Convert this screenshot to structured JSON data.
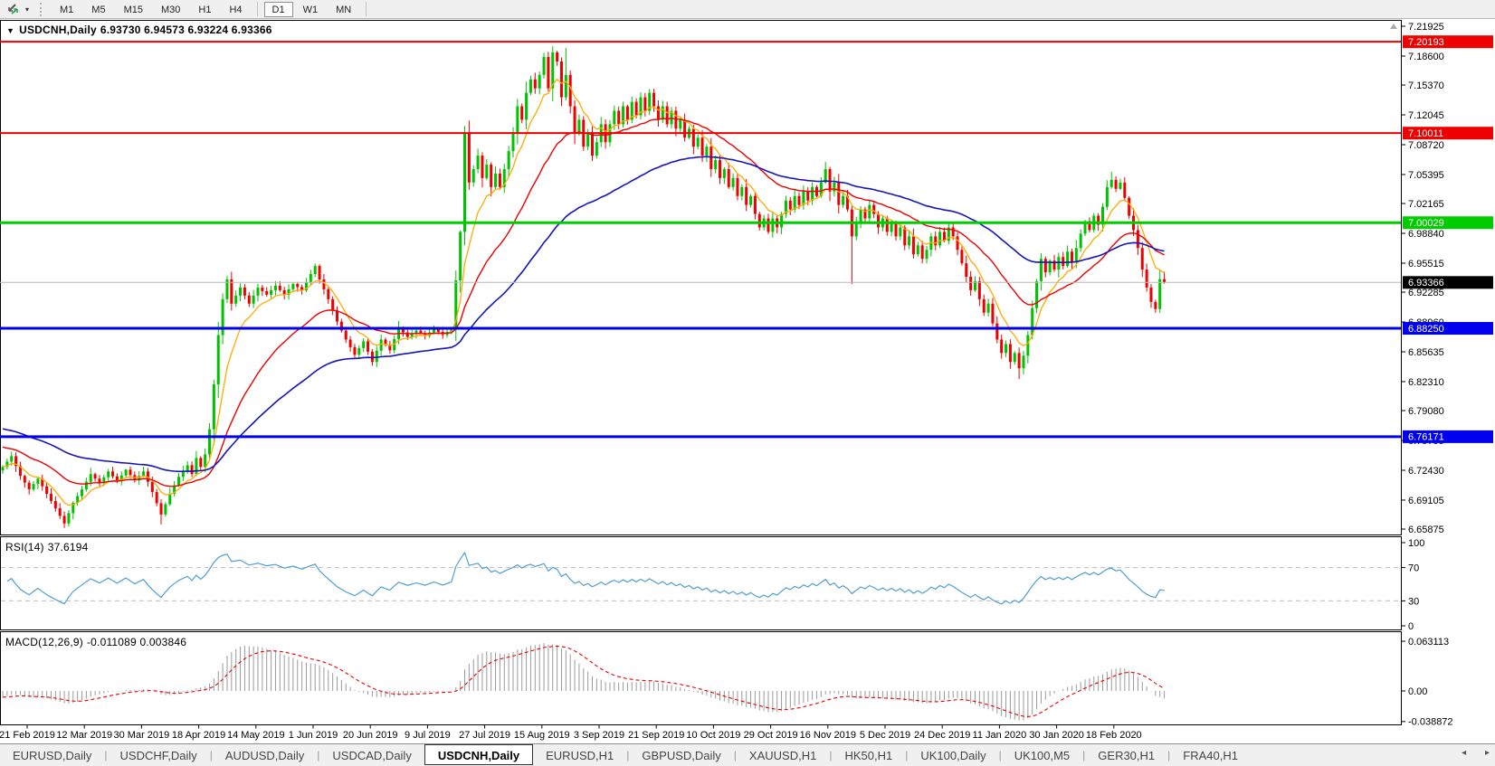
{
  "toolbar": {
    "chart_icon": "chart-shift-icon",
    "dropdown_icon": "▾",
    "timeframe_groups": [
      [
        "M1",
        "M5",
        "M15",
        "M30",
        "H1",
        "H4"
      ],
      [
        "D1",
        "W1",
        "MN"
      ]
    ],
    "active_timeframe": "D1"
  },
  "chart_header": {
    "collapse_icon": "▼",
    "symbol_label": "USDCNH,Daily",
    "ohlc": "6.93730 6.94573 6.93224 6.93366"
  },
  "indicators": {
    "rsi": {
      "label": "RSI(14)",
      "value": "37.6194",
      "levels": [
        100,
        70,
        30,
        0
      ],
      "line_color": "#4f9ed6"
    },
    "macd": {
      "label": "MACD(12,26,9)",
      "values": "-0.011089 0.003846",
      "axis_labels": [
        "0.063113",
        "0.00",
        "-0.038872"
      ],
      "histogram_color": "#9a9a9a",
      "signal_color": "#ee0000"
    }
  },
  "price_axis": {
    "ticks": [
      "7.21925",
      "7.18600",
      "7.15370",
      "7.12045",
      "7.08720",
      "7.05395",
      "7.02165",
      "6.98840",
      "6.95515",
      "6.92285",
      "6.88960",
      "6.85635",
      "6.82310",
      "6.79080",
      "6.75755",
      "6.72430",
      "6.69105",
      "6.65875"
    ],
    "badges": [
      {
        "value": "7.20193",
        "bg": "#ee0000",
        "fg": "#ffffff"
      },
      {
        "value": "7.10011",
        "bg": "#ee0000",
        "fg": "#ffffff"
      },
      {
        "value": "7.00029",
        "bg": "#00cc00",
        "fg": "#ffffff"
      },
      {
        "value": "6.93366",
        "bg": "#000000",
        "fg": "#ffffff"
      },
      {
        "value": "6.88250",
        "bg": "#0000ee",
        "fg": "#ffffff"
      },
      {
        "value": "6.76171",
        "bg": "#0000ee",
        "fg": "#ffffff"
      }
    ]
  },
  "chart_data": {
    "type": "candlestick",
    "symbol": "USDCNH",
    "timeframe": "Daily",
    "ohlc_current": {
      "open": 6.9373,
      "high": 6.94573,
      "low": 6.93224,
      "close": 6.93366
    },
    "y_range": [
      6.65875,
      7.21925
    ],
    "grid": false,
    "x_labels": [
      "21 Feb 2019",
      "12 Mar 2019",
      "30 Mar 2019",
      "18 Apr 2019",
      "14 May 2019",
      "1 Jun 2019",
      "20 Jun 2019",
      "9 Jul 2019",
      "27 Jul 2019",
      "15 Aug 2019",
      "3 Sep 2019",
      "21 Sep 2019",
      "10 Oct 2019",
      "29 Oct 2019",
      "16 Nov 2019",
      "5 Dec 2019",
      "24 Dec 2019",
      "11 Jan 2020",
      "30 Jan 2020",
      "18 Feb 2020"
    ],
    "up_color": "#00c200",
    "down_color": "#ee0000",
    "close_keyframes": [
      [
        0,
        6.728
      ],
      [
        2,
        6.74
      ],
      [
        4,
        6.718
      ],
      [
        6,
        6.703
      ],
      [
        8,
        6.715
      ],
      [
        10,
        6.698
      ],
      [
        12,
        6.682
      ],
      [
        14,
        6.665
      ],
      [
        16,
        6.688
      ],
      [
        18,
        6.703
      ],
      [
        20,
        6.72
      ],
      [
        22,
        6.71
      ],
      [
        24,
        6.723
      ],
      [
        26,
        6.712
      ],
      [
        28,
        6.725
      ],
      [
        30,
        6.713
      ],
      [
        32,
        6.723
      ],
      [
        34,
        6.7
      ],
      [
        36,
        6.675
      ],
      [
        38,
        6.698
      ],
      [
        40,
        6.717
      ],
      [
        42,
        6.73
      ],
      [
        43,
        6.72
      ],
      [
        44,
        6.738
      ],
      [
        45,
        6.728
      ],
      [
        46,
        6.742
      ],
      [
        47,
        6.77
      ],
      [
        48,
        6.82
      ],
      [
        49,
        6.875
      ],
      [
        50,
        6.915
      ],
      [
        51,
        6.937
      ],
      [
        52,
        6.91
      ],
      [
        54,
        6.928
      ],
      [
        56,
        6.91
      ],
      [
        58,
        6.928
      ],
      [
        60,
        6.92
      ],
      [
        62,
        6.93
      ],
      [
        64,
        6.92
      ],
      [
        66,
        6.932
      ],
      [
        68,
        6.925
      ],
      [
        70,
        6.943
      ],
      [
        71,
        6.952
      ],
      [
        72,
        6.937
      ],
      [
        74,
        6.915
      ],
      [
        76,
        6.89
      ],
      [
        78,
        6.87
      ],
      [
        80,
        6.853
      ],
      [
        82,
        6.868
      ],
      [
        84,
        6.845
      ],
      [
        86,
        6.87
      ],
      [
        88,
        6.858
      ],
      [
        90,
        6.883
      ],
      [
        92,
        6.873
      ],
      [
        94,
        6.88
      ],
      [
        96,
        6.874
      ],
      [
        98,
        6.882
      ],
      [
        100,
        6.875
      ],
      [
        102,
        6.882
      ],
      [
        104,
        6.99
      ],
      [
        105,
        7.1
      ],
      [
        106,
        7.045
      ],
      [
        107,
        7.06
      ],
      [
        108,
        7.075
      ],
      [
        109,
        7.05
      ],
      [
        110,
        7.065
      ],
      [
        111,
        7.04
      ],
      [
        112,
        7.055
      ],
      [
        113,
        7.04
      ],
      [
        114,
        7.06
      ],
      [
        115,
        7.08
      ],
      [
        116,
        7.1
      ],
      [
        117,
        7.13
      ],
      [
        118,
        7.115
      ],
      [
        119,
        7.145
      ],
      [
        120,
        7.16
      ],
      [
        121,
        7.15
      ],
      [
        122,
        7.165
      ],
      [
        123,
        7.185
      ],
      [
        124,
        7.15
      ],
      [
        125,
        7.19
      ],
      [
        126,
        7.18
      ],
      [
        127,
        7.14
      ],
      [
        128,
        7.165
      ],
      [
        129,
        7.13
      ],
      [
        130,
        7.1
      ],
      [
        131,
        7.115
      ],
      [
        132,
        7.085
      ],
      [
        133,
        7.1
      ],
      [
        134,
        7.075
      ],
      [
        135,
        7.09
      ],
      [
        136,
        7.11
      ],
      [
        137,
        7.09
      ],
      [
        138,
        7.11
      ],
      [
        139,
        7.125
      ],
      [
        140,
        7.11
      ],
      [
        141,
        7.13
      ],
      [
        142,
        7.115
      ],
      [
        143,
        7.135
      ],
      [
        144,
        7.12
      ],
      [
        145,
        7.14
      ],
      [
        146,
        7.125
      ],
      [
        147,
        7.145
      ],
      [
        148,
        7.13
      ],
      [
        149,
        7.115
      ],
      [
        150,
        7.13
      ],
      [
        151,
        7.11
      ],
      [
        152,
        7.125
      ],
      [
        153,
        7.105
      ],
      [
        154,
        7.115
      ],
      [
        155,
        7.095
      ],
      [
        156,
        7.105
      ],
      [
        157,
        7.085
      ],
      [
        158,
        7.095
      ],
      [
        159,
        7.075
      ],
      [
        160,
        7.085
      ],
      [
        161,
        7.06
      ],
      [
        162,
        7.07
      ],
      [
        163,
        7.05
      ],
      [
        164,
        7.06
      ],
      [
        165,
        7.04
      ],
      [
        166,
        7.05
      ],
      [
        167,
        7.03
      ],
      [
        168,
        7.04
      ],
      [
        169,
        7.02
      ],
      [
        170,
        7.03
      ],
      [
        171,
        7.01
      ],
      [
        172,
        6.995
      ],
      [
        173,
        7.005
      ],
      [
        174,
        6.99
      ],
      [
        175,
        7.005
      ],
      [
        176,
        6.995
      ],
      [
        177,
        7.01
      ],
      [
        178,
        7.025
      ],
      [
        179,
        7.015
      ],
      [
        180,
        7.03
      ],
      [
        181,
        7.02
      ],
      [
        182,
        7.035
      ],
      [
        183,
        7.025
      ],
      [
        184,
        7.04
      ],
      [
        185,
        7.03
      ],
      [
        186,
        7.045
      ],
      [
        187,
        7.06
      ],
      [
        188,
        7.035
      ],
      [
        189,
        7.045
      ],
      [
        190,
        7.02
      ],
      [
        191,
        7.03
      ],
      [
        192,
        7.015
      ],
      [
        193,
        6.985
      ],
      [
        194,
        7.0
      ],
      [
        195,
        7.015
      ],
      [
        196,
        7.005
      ],
      [
        197,
        7.02
      ],
      [
        198,
        7.01
      ],
      [
        199,
        6.995
      ],
      [
        200,
        7.005
      ],
      [
        201,
        6.99
      ],
      [
        202,
        7.0
      ],
      [
        203,
        6.985
      ],
      [
        204,
        6.995
      ],
      [
        205,
        6.975
      ],
      [
        206,
        6.985
      ],
      [
        207,
        6.965
      ],
      [
        208,
        6.975
      ],
      [
        209,
        6.96
      ],
      [
        210,
        6.97
      ],
      [
        211,
        6.985
      ],
      [
        212,
        6.975
      ],
      [
        213,
        6.99
      ],
      [
        214,
        6.98
      ],
      [
        215,
        6.995
      ],
      [
        216,
        6.985
      ],
      [
        217,
        6.97
      ],
      [
        218,
        6.955
      ],
      [
        219,
        6.94
      ],
      [
        220,
        6.925
      ],
      [
        221,
        6.935
      ],
      [
        222,
        6.915
      ],
      [
        223,
        6.9
      ],
      [
        224,
        6.91
      ],
      [
        225,
        6.888
      ],
      [
        226,
        6.87
      ],
      [
        227,
        6.855
      ],
      [
        228,
        6.865
      ],
      [
        229,
        6.845
      ],
      [
        230,
        6.855
      ],
      [
        231,
        6.838
      ],
      [
        232,
        6.852
      ],
      [
        233,
        6.875
      ],
      [
        234,
        6.905
      ],
      [
        235,
        6.935
      ],
      [
        236,
        6.96
      ],
      [
        237,
        6.945
      ],
      [
        238,
        6.958
      ],
      [
        239,
        6.948
      ],
      [
        240,
        6.962
      ],
      [
        241,
        6.952
      ],
      [
        242,
        6.968
      ],
      [
        243,
        6.956
      ],
      [
        244,
        6.972
      ],
      [
        245,
        6.988
      ],
      [
        246,
        7.002
      ],
      [
        247,
        6.992
      ],
      [
        248,
        7.008
      ],
      [
        249,
        6.998
      ],
      [
        250,
        7.018
      ],
      [
        251,
        7.04
      ],
      [
        252,
        7.048
      ],
      [
        253,
        7.038
      ],
      [
        254,
        7.045
      ],
      [
        255,
        7.028
      ],
      [
        256,
        7.008
      ],
      [
        257,
        6.992
      ],
      [
        258,
        6.972
      ],
      [
        259,
        6.948
      ],
      [
        260,
        6.928
      ],
      [
        261,
        6.912
      ],
      [
        262,
        6.904
      ],
      [
        263,
        6.9373
      ],
      [
        264,
        6.93366
      ]
    ],
    "wick_overrides": {
      "14": {
        "low": 6.66
      },
      "36": {
        "low": 6.664
      },
      "105": {
        "high": 7.108,
        "low": 6.975
      },
      "125": {
        "high": 7.197
      },
      "128": {
        "high": 7.195
      },
      "187": {
        "high": 7.068
      },
      "193": {
        "low": 6.932
      },
      "231": {
        "low": 6.826
      },
      "252": {
        "high": 7.057
      },
      "264": {
        "high": 6.94573,
        "low": 6.93224
      }
    },
    "moving_averages": [
      {
        "period": 8,
        "color": "#ffaa00",
        "width": 1.3,
        "seed": 6.728
      },
      {
        "period": 25,
        "color": "#ee0000",
        "width": 1.4,
        "seed": 6.752
      },
      {
        "period": 60,
        "color": "#1515bb",
        "width": 1.6,
        "seed": 6.772
      }
    ],
    "current_price_line": {
      "price": 6.93366,
      "color": "#b8b8b8"
    },
    "horizontal_lines": [
      {
        "price": 7.20193,
        "color": "#ee0000",
        "width": 2
      },
      {
        "price": 7.10011,
        "color": "#ee0000",
        "width": 2
      },
      {
        "price": 7.00029,
        "color": "#00cc00",
        "width": 3
      },
      {
        "price": 6.8825,
        "color": "#0000ee",
        "width": 3
      },
      {
        "price": 6.76171,
        "color": "#0000ee",
        "width": 3
      }
    ]
  },
  "tabs": {
    "items": [
      {
        "label": "EURUSD,Daily",
        "active": false
      },
      {
        "label": "USDCHF,Daily",
        "active": false
      },
      {
        "label": "AUDUSD,Daily",
        "active": false
      },
      {
        "label": "USDCAD,Daily",
        "active": false
      },
      {
        "label": "USDCNH,Daily",
        "active": true
      },
      {
        "label": "EURUSD,H1",
        "active": false
      },
      {
        "label": "GBPUSD,Daily",
        "active": false
      },
      {
        "label": "XAUUSD,H1",
        "active": false
      },
      {
        "label": "HK50,H1",
        "active": false
      },
      {
        "label": "UK100,Daily",
        "active": false
      },
      {
        "label": "UK100,M5",
        "active": false
      },
      {
        "label": "GER30,H1",
        "active": false
      },
      {
        "label": "FRA40,H1",
        "active": false
      }
    ],
    "scroll_left_icon": "◂",
    "scroll_right_icon": "▸"
  }
}
